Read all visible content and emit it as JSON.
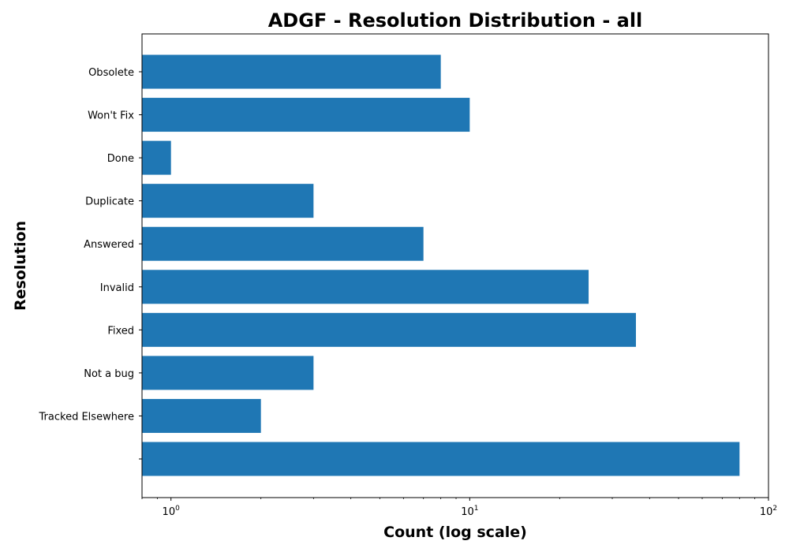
{
  "chart_data": {
    "type": "bar",
    "orientation": "horizontal",
    "title": "ADGF - Resolution Distribution - all",
    "xlabel": "Count (log scale)",
    "ylabel": "Resolution",
    "x_scale": "log",
    "xlim": [
      0.8,
      100
    ],
    "x_ticks": [
      {
        "value": 1,
        "base": "10",
        "exp": "0"
      },
      {
        "value": 10,
        "base": "10",
        "exp": "1"
      },
      {
        "value": 100,
        "base": "10",
        "exp": "2"
      }
    ],
    "categories": [
      "",
      "Tracked Elsewhere",
      "Not a bug",
      "Fixed",
      "Invalid",
      "Answered",
      "Duplicate",
      "Done",
      "Won't Fix",
      "Obsolete"
    ],
    "values": [
      80,
      2,
      3,
      36,
      25,
      7,
      3,
      1,
      10,
      8
    ],
    "bar_color": "#1f77b4",
    "grid": false
  }
}
